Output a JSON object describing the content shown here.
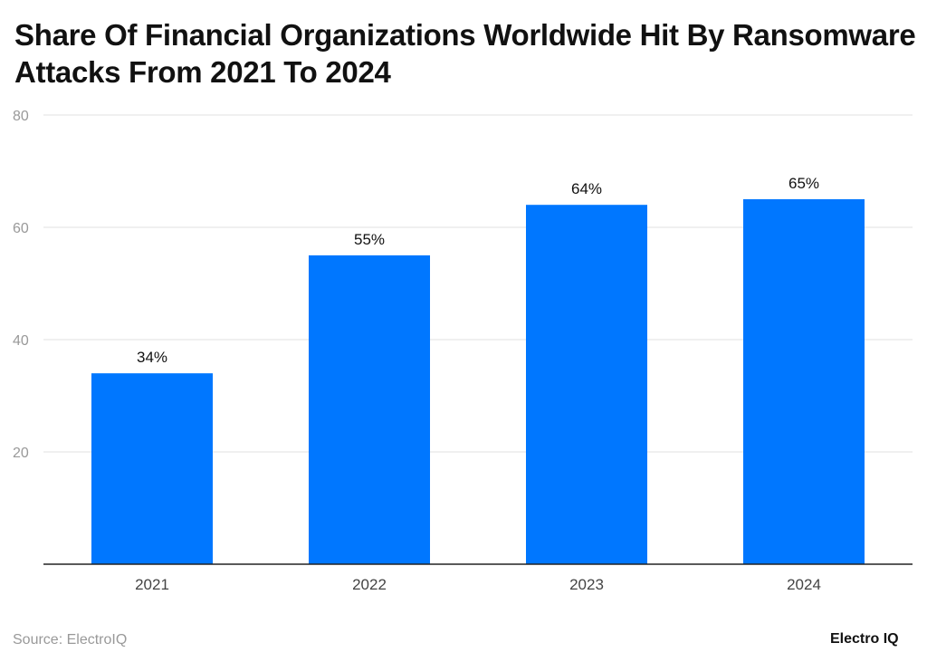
{
  "chart_data": {
    "type": "bar",
    "title": "Share Of Financial Organizations Worldwide Hit By Ransomware Attacks From 2021 To 2024",
    "categories": [
      "2021",
      "2022",
      "2023",
      "2024"
    ],
    "values": [
      34,
      55,
      64,
      65
    ],
    "data_labels": [
      "34%",
      "55%",
      "64%",
      "65%"
    ],
    "xlabel": "",
    "ylabel": "",
    "ylim": [
      0,
      80
    ],
    "yticks": [
      20,
      40,
      60,
      80
    ],
    "grid": true,
    "bar_color": "#0077FF"
  },
  "footer": {
    "source": "Source: ElectroIQ",
    "logo": "Electro IQ"
  }
}
